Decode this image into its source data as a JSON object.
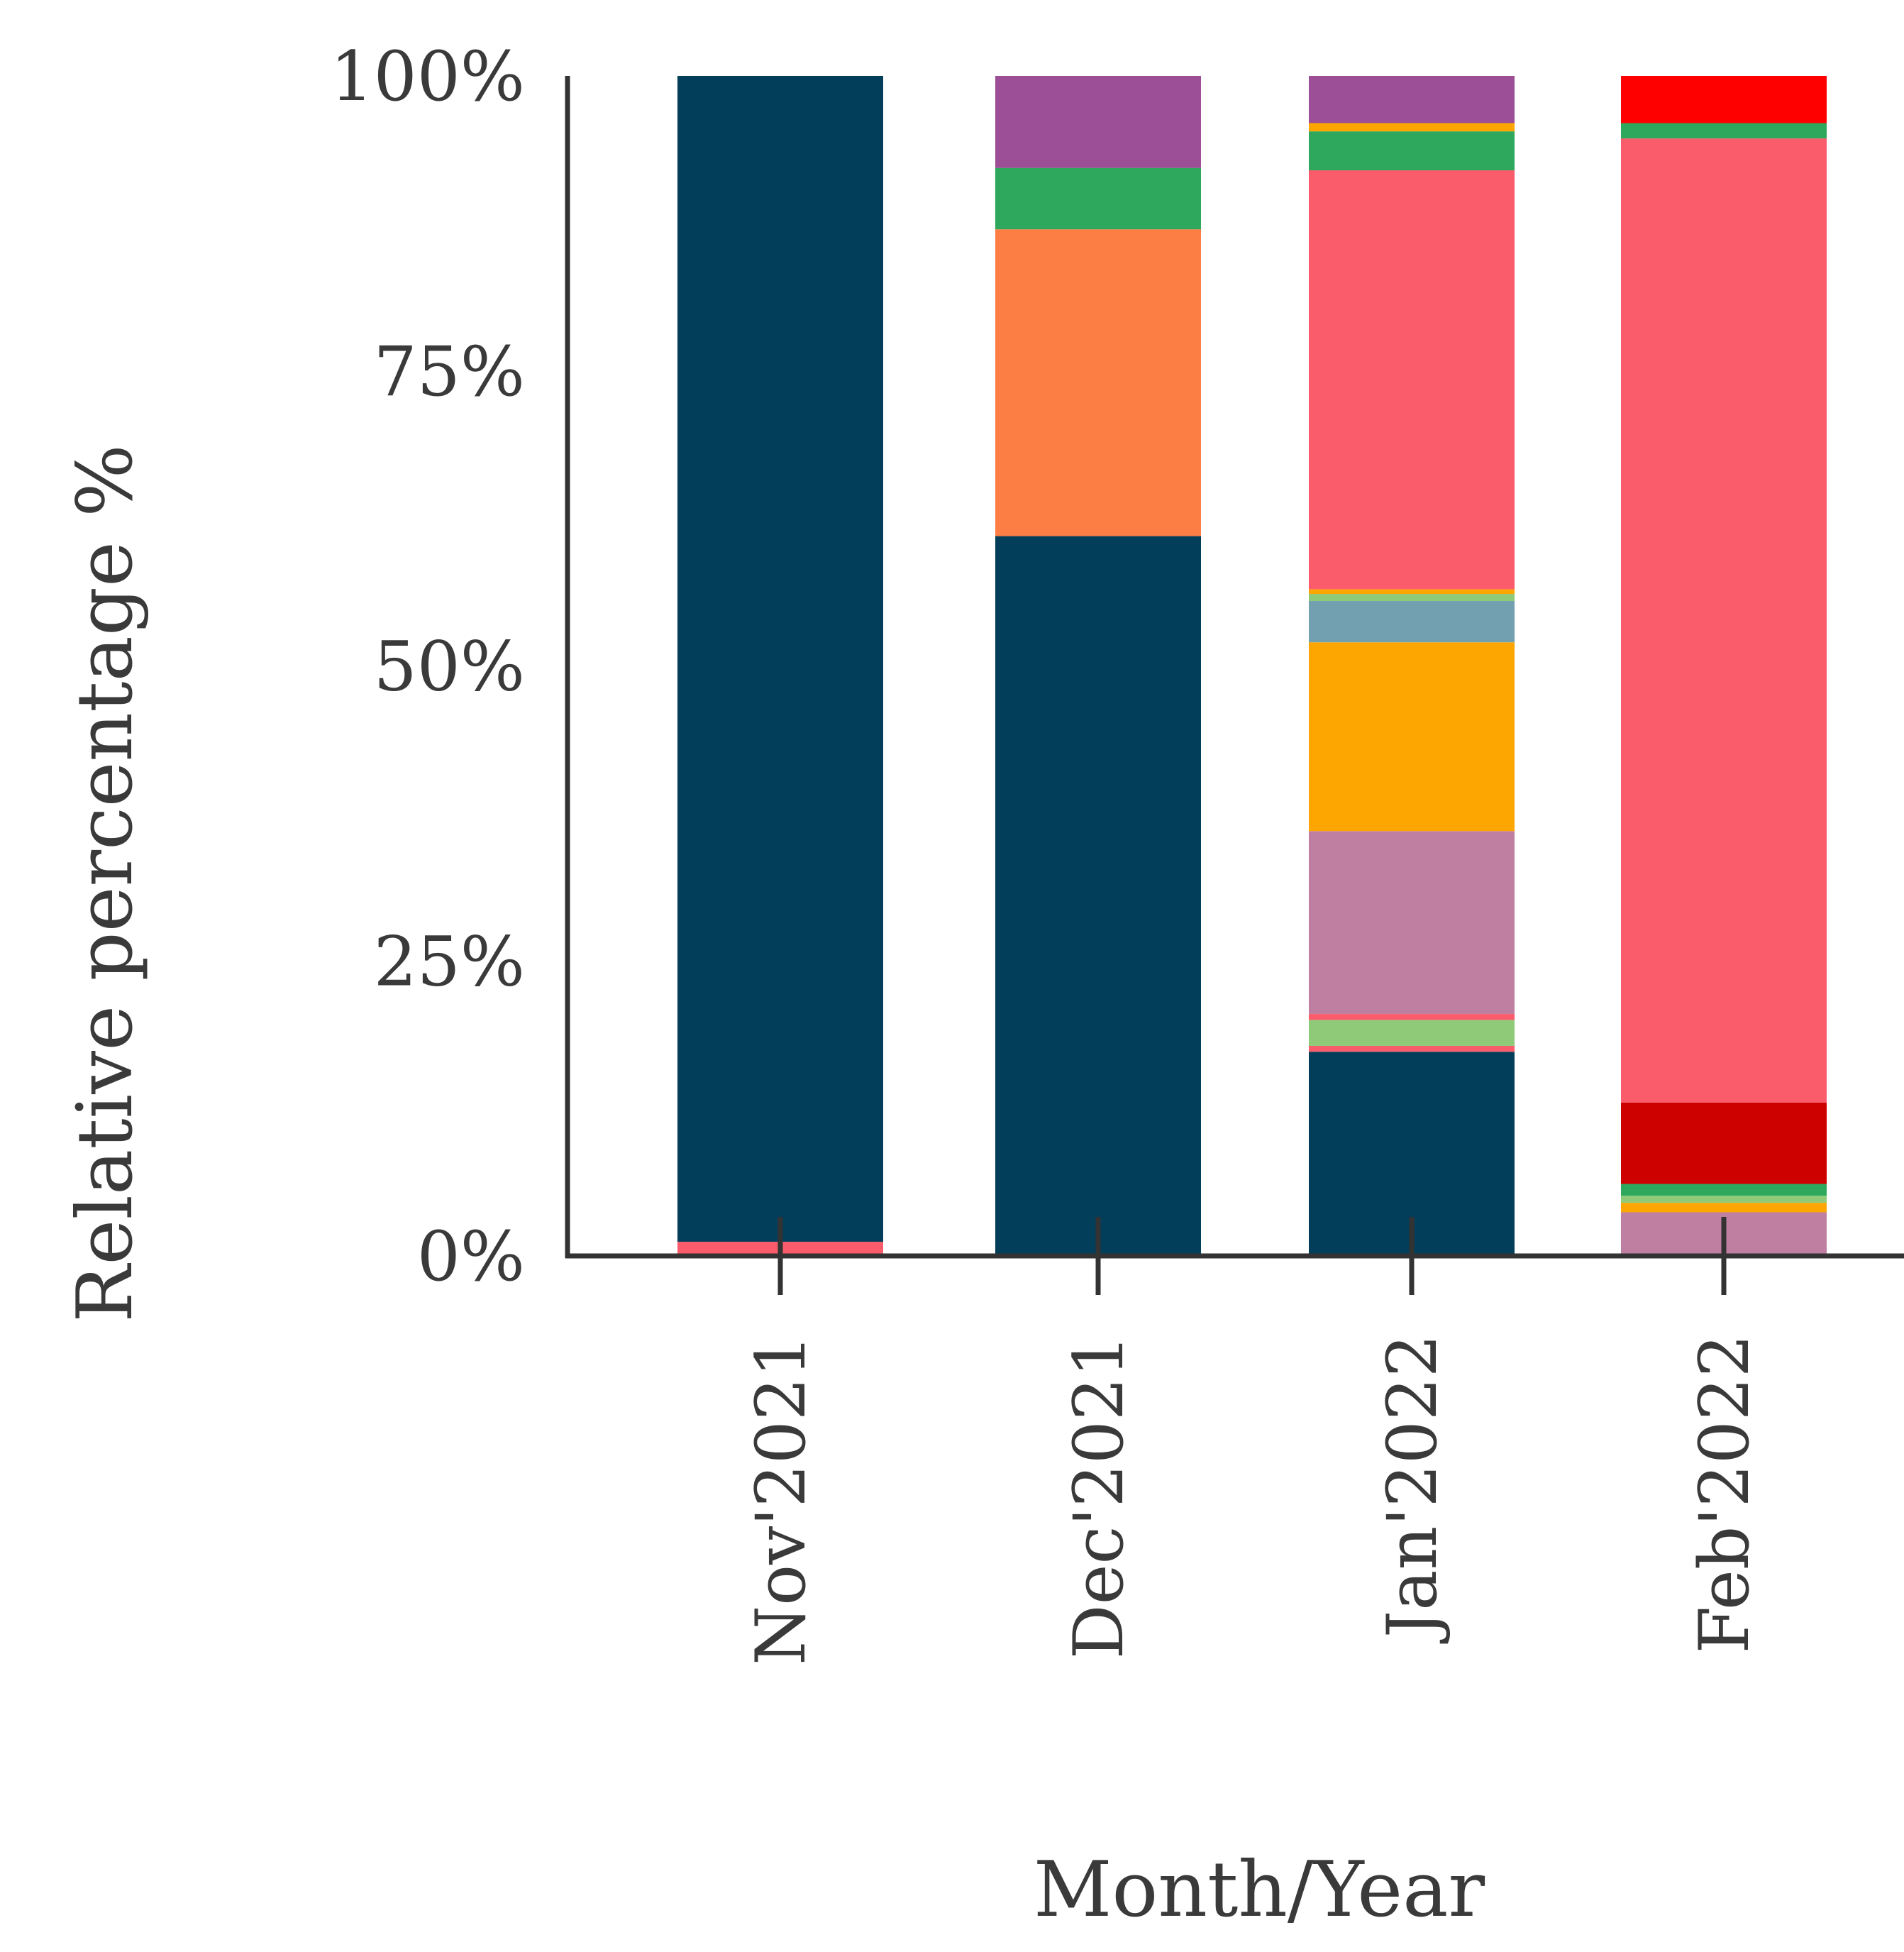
{
  "chart_data": {
    "type": "bar",
    "stacked": true,
    "normalized": true,
    "title": "",
    "xlabel": "Month/Year",
    "ylabel": "Relative percentage %",
    "ylim": [
      0,
      100
    ],
    "yticks": [
      "0%",
      "25%",
      "50%",
      "75%",
      "100%"
    ],
    "ytick_values": [
      0,
      25,
      50,
      75,
      100
    ],
    "categories": [
      "Nov'2021",
      "Dec'2021",
      "Jan'2022",
      "Feb'2022"
    ],
    "grid": false,
    "legend": "none",
    "segment_order": "bottom-to-top",
    "colors": {
      "dark_navy": "#023e5a",
      "salmon": "#fa5c6c",
      "orange": "#fc7e44",
      "green": "#2ea85c",
      "purple": "#9c4f96",
      "light_green": "#8fca78",
      "mauve": "#bf7fa0",
      "amber": "#fda601",
      "steel_blue": "#72a0b1",
      "dark_red": "#cd0100",
      "red": "#fe0000"
    },
    "stacks": [
      {
        "category": "Nov'2021",
        "segments": [
          {
            "color": "salmon",
            "value": 1.2
          },
          {
            "color": "dark_navy",
            "value": 98.8
          }
        ]
      },
      {
        "category": "Dec'2021",
        "segments": [
          {
            "color": "dark_navy",
            "value": 61.0
          },
          {
            "color": "orange",
            "value": 26.0
          },
          {
            "color": "green",
            "value": 5.2
          },
          {
            "color": "purple",
            "value": 7.8
          }
        ]
      },
      {
        "category": "Jan'2022",
        "segments": [
          {
            "color": "dark_navy",
            "value": 17.3
          },
          {
            "color": "salmon",
            "value": 0.5
          },
          {
            "color": "light_green",
            "value": 2.2
          },
          {
            "color": "salmon",
            "value": 0.5
          },
          {
            "color": "mauve",
            "value": 15.5
          },
          {
            "color": "amber",
            "value": 16.0
          },
          {
            "color": "steel_blue",
            "value": 3.5
          },
          {
            "color": "light_green",
            "value": 0.6
          },
          {
            "color": "amber",
            "value": 0.4
          },
          {
            "color": "salmon",
            "value": 35.5
          },
          {
            "color": "green",
            "value": 3.3
          },
          {
            "color": "amber",
            "value": 0.7
          },
          {
            "color": "purple",
            "value": 4.0
          }
        ]
      },
      {
        "category": "Feb'2022",
        "segments": [
          {
            "color": "mauve",
            "value": 3.7
          },
          {
            "color": "amber",
            "value": 0.8
          },
          {
            "color": "light_green",
            "value": 0.6
          },
          {
            "color": "green",
            "value": 1.0
          },
          {
            "color": "dark_red",
            "value": 6.9
          },
          {
            "color": "salmon",
            "value": 81.7
          },
          {
            "color": "green",
            "value": 1.3
          },
          {
            "color": "red",
            "value": 4.0
          }
        ]
      }
    ]
  }
}
